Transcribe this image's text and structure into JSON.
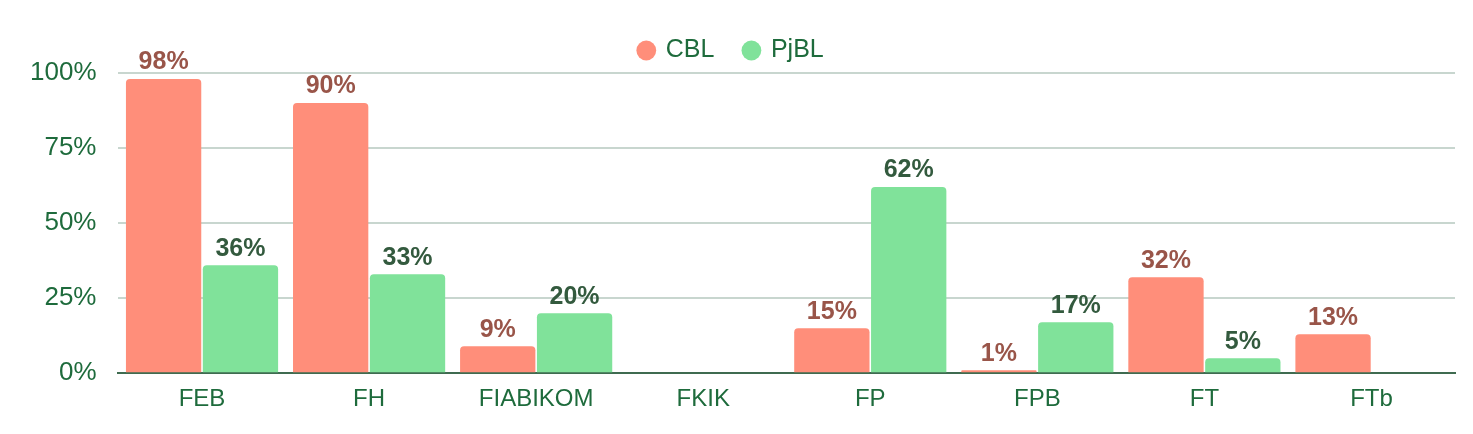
{
  "chart_data": {
    "type": "bar",
    "categories": [
      "FEB",
      "FH",
      "FIABIKOM",
      "FKIK",
      "FP",
      "FPB",
      "FT",
      "FTb"
    ],
    "series": [
      {
        "name": "CBL",
        "color": "#ff8e7a",
        "values": [
          98,
          90,
          9,
          null,
          15,
          1,
          32,
          13
        ],
        "value_labels": [
          "98%",
          "90%",
          "9%",
          null,
          "15%",
          "1%",
          "32%",
          "13%"
        ]
      },
      {
        "name": "PjBL",
        "color": "#80e29a",
        "values": [
          36,
          33,
          20,
          null,
          62,
          17,
          5,
          null
        ],
        "value_labels": [
          "36%",
          "33%",
          "20%",
          null,
          "62%",
          "17%",
          "5%",
          null
        ]
      }
    ],
    "ylim": [
      0,
      100
    ],
    "yticks": [
      {
        "value": 0,
        "label": "0%"
      },
      {
        "value": 25,
        "label": "25%"
      },
      {
        "value": 50,
        "label": "50%"
      },
      {
        "value": 75,
        "label": "75%"
      },
      {
        "value": 100,
        "label": "100%"
      }
    ],
    "grid": "y",
    "legend": "top"
  }
}
